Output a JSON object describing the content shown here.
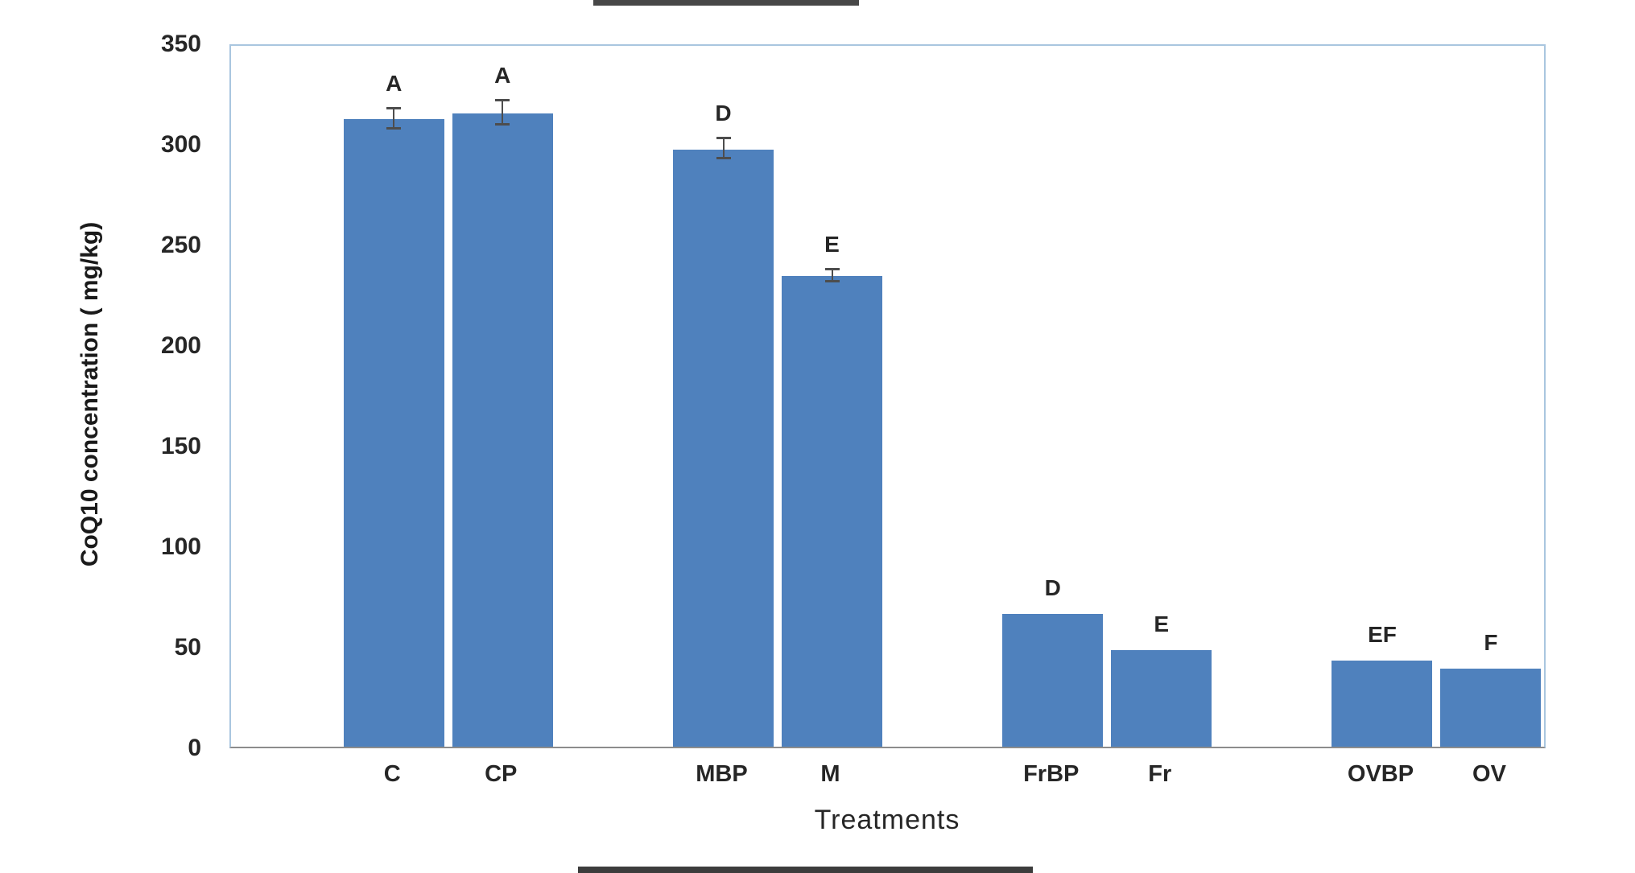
{
  "chart_data": {
    "type": "bar",
    "title": "",
    "xlabel": "Treatments",
    "ylabel": "CoQ10 concentration ( mg/kg)",
    "ylim": [
      0,
      350
    ],
    "yticks": [
      0,
      50,
      100,
      150,
      200,
      250,
      300,
      350
    ],
    "bar_color": "#4f81bd",
    "error_bar_color": "#4d4d4d",
    "grid": "off",
    "legend": "none",
    "groups": [
      {
        "bars": [
          {
            "label": "C",
            "value": 312,
            "letter": "A",
            "error": 5
          },
          {
            "label": "CP",
            "value": 315,
            "letter": "A",
            "error": 6
          }
        ]
      },
      {
        "bars": [
          {
            "label": "MBP",
            "value": 297,
            "letter": "D",
            "error": 5
          },
          {
            "label": "M",
            "value": 234,
            "letter": "E",
            "error": 3
          }
        ]
      },
      {
        "bars": [
          {
            "label": "FrBP",
            "value": 66,
            "letter": "D",
            "error": 0
          },
          {
            "label": "Fr",
            "value": 48,
            "letter": "E",
            "error": 0
          }
        ]
      },
      {
        "bars": [
          {
            "label": "OVBP",
            "value": 43,
            "letter": "EF",
            "error": 0
          },
          {
            "label": "OV",
            "value": 39,
            "letter": "F",
            "error": 0
          }
        ]
      }
    ]
  }
}
